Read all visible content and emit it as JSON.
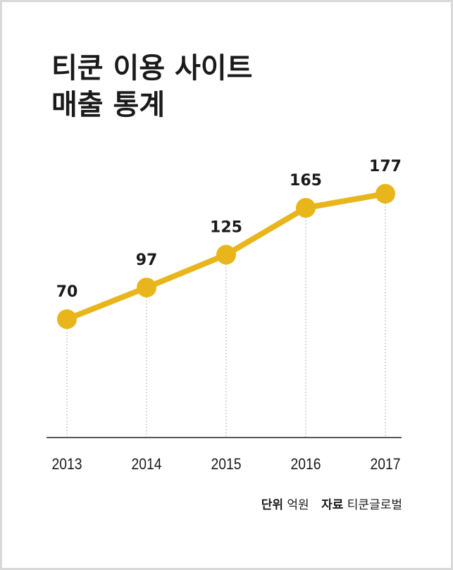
{
  "title": {
    "line1": "티쿤 이용 사이트",
    "line2": "매출 통계"
  },
  "colors": {
    "line": "#e8b61b",
    "axis": "#222222",
    "text": "#1a1a1a",
    "border": "#d9d9d9"
  },
  "chart_data": {
    "type": "line",
    "title": "티쿤 이용 사이트 매출 통계",
    "categories": [
      "2013",
      "2014",
      "2015",
      "2016",
      "2017"
    ],
    "series": [
      {
        "values": [
          70,
          97,
          125,
          165,
          177
        ]
      }
    ],
    "data_labels": [
      "70",
      "97",
      "125",
      "165",
      "177"
    ],
    "grid": false,
    "legend": "none"
  },
  "footer": {
    "unit_label": "단위",
    "unit_value": "억원",
    "source_label": "자료",
    "source_value": "티쿤글로벌"
  }
}
